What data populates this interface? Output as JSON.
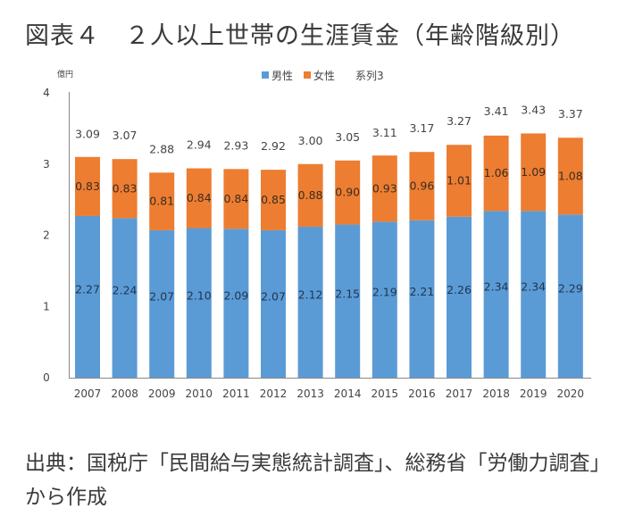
{
  "title": "図表４　２人以上世帯の生涯賃金（年齢階級別）",
  "source": "出典：国税庁「民間給与実態統計調査」、総務省「労働力調査」から作成",
  "chart_data": {
    "type": "bar",
    "stacked": true,
    "title": "２人以上世帯の生涯賃金（年齢階級別）",
    "ylabel": "億円",
    "xlabel": "",
    "ylim": [
      0,
      4
    ],
    "yticks": [
      "0",
      "1",
      "2",
      "3",
      "4"
    ],
    "grid": false,
    "legend_position": "top-center",
    "categories": [
      "2007",
      "2008",
      "2009",
      "2010",
      "2011",
      "2012",
      "2013",
      "2014",
      "2015",
      "2016",
      "2017",
      "2018",
      "2019",
      "2020"
    ],
    "series": [
      {
        "name": "男性",
        "color": "#5b9bd5",
        "values": [
          2.27,
          2.24,
          2.07,
          2.1,
          2.09,
          2.07,
          2.12,
          2.15,
          2.19,
          2.21,
          2.26,
          2.34,
          2.34,
          2.29
        ]
      },
      {
        "name": "女性",
        "color": "#ed7d31",
        "values": [
          0.83,
          0.83,
          0.81,
          0.84,
          0.84,
          0.85,
          0.88,
          0.9,
          0.93,
          0.96,
          1.01,
          1.06,
          1.09,
          1.08
        ]
      },
      {
        "name": "系列3",
        "color": null,
        "values": [
          3.09,
          3.07,
          2.88,
          2.94,
          2.93,
          2.92,
          3.0,
          3.05,
          3.11,
          3.17,
          3.27,
          3.41,
          3.43,
          3.37
        ]
      }
    ],
    "male_labels": [
      "2.27",
      "2.24",
      "2.07",
      "2.10",
      "2.09",
      "2.07",
      "2.12",
      "2.15",
      "2.19",
      "2.21",
      "2.26",
      "2.34",
      "2.34",
      "2.29"
    ],
    "female_labels": [
      "0.83",
      "0.83",
      "0.81",
      "0.84",
      "0.84",
      "0.85",
      "0.88",
      "0.90",
      "0.93",
      "0.96",
      "1.01",
      "1.06",
      "1.09",
      "1.08"
    ],
    "total_labels": [
      "3.09",
      "3.07",
      "2.88",
      "2.94",
      "2.93",
      "2.92",
      "3.00",
      "3.05",
      "3.11",
      "3.17",
      "3.27",
      "3.41",
      "3.43",
      "3.37"
    ]
  }
}
